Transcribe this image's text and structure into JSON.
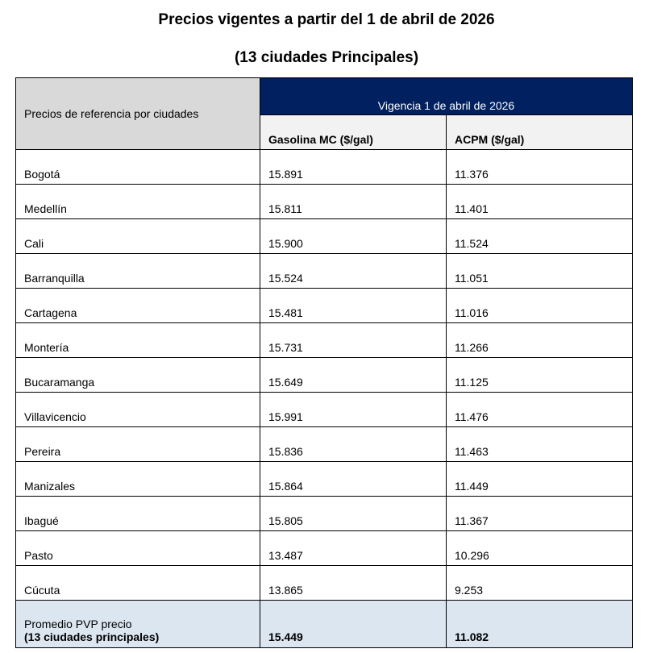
{
  "title": "Precios vigentes a partir del 1 de abril de 2026",
  "subtitle": "(13 ciudades Principales)",
  "table": {
    "corner_label": "Precios de referencia por ciudades",
    "group_header": "Vigencia 1 de abril de 2026",
    "columns": [
      "Gasolina MC ($/gal)",
      "ACPM ($/gal)"
    ],
    "rows": [
      {
        "city": "Bogotá",
        "gasolina": "15.891",
        "acpm": "11.376"
      },
      {
        "city": "Medellín",
        "gasolina": "15.811",
        "acpm": "11.401"
      },
      {
        "city": "Cali",
        "gasolina": "15.900",
        "acpm": "11.524"
      },
      {
        "city": "Barranquilla",
        "gasolina": "15.524",
        "acpm": "11.051"
      },
      {
        "city": "Cartagena",
        "gasolina": "15.481",
        "acpm": "11.016"
      },
      {
        "city": "Montería",
        "gasolina": "15.731",
        "acpm": "11.266"
      },
      {
        "city": "Bucaramanga",
        "gasolina": "15.649",
        "acpm": "11.125"
      },
      {
        "city": "Villavicencio",
        "gasolina": "15.991",
        "acpm": "11.476"
      },
      {
        "city": "Pereira",
        "gasolina": "15.836",
        "acpm": "11.463"
      },
      {
        "city": "Manizales",
        "gasolina": "15.864",
        "acpm": "11.449"
      },
      {
        "city": "Ibagué",
        "gasolina": "15.805",
        "acpm": "11.367"
      },
      {
        "city": "Pasto",
        "gasolina": "13.487",
        "acpm": "10.296"
      },
      {
        "city": "Cúcuta",
        "gasolina": "13.865",
        "acpm": "9.253"
      }
    ],
    "average": {
      "label_line1": "Promedio PVP precio",
      "label_line2": "(13 ciudades principales)",
      "gasolina": "15.449",
      "acpm": "11.082"
    }
  },
  "colors": {
    "header_navy": "#002060",
    "corner_gray": "#d9d9d9",
    "average_row": "#dce6f1"
  }
}
